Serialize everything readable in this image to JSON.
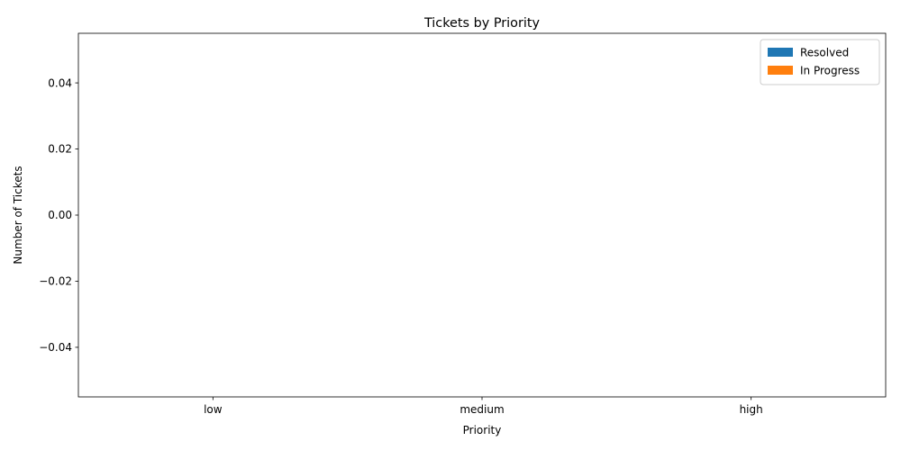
{
  "chart_data": {
    "type": "bar",
    "title": "Tickets by Priority",
    "xlabel": "Priority",
    "ylabel": "Number of Tickets",
    "categories": [
      "low",
      "medium",
      "high"
    ],
    "series": [
      {
        "name": "Resolved",
        "values": [
          0,
          0,
          0
        ],
        "color": "#1f77b4"
      },
      {
        "name": "In Progress",
        "values": [
          0,
          0,
          0
        ],
        "color": "#ff7f0e"
      }
    ],
    "ylim": [
      -0.055,
      0.055
    ],
    "yticks": [
      -0.04,
      -0.02,
      0.0,
      0.02,
      0.04
    ],
    "ytick_labels": [
      "−0.04",
      "−0.02",
      "0.00",
      "0.02",
      "0.04"
    ],
    "grid": false,
    "legend_position": "top-right"
  }
}
